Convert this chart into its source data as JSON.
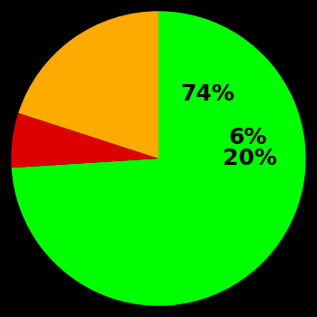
{
  "slices": [
    74,
    6,
    20
  ],
  "colors": [
    "#00ff00",
    "#dd0000",
    "#ffaa00"
  ],
  "labels": [
    "74%",
    "6%",
    "20%"
  ],
  "label_colors": [
    "#000000",
    "#000000",
    "#000000"
  ],
  "background_color": "#000000",
  "startangle": 90,
  "label_fontsize": 18,
  "label_fontweight": "bold",
  "label_radii": [
    0.55,
    0.62,
    0.62
  ]
}
